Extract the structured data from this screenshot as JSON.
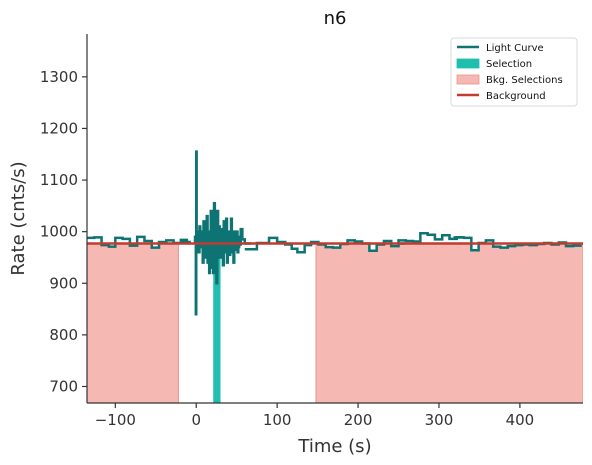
{
  "chart_data": {
    "type": "line",
    "title": "n6",
    "xlabel": "Time (s)",
    "ylabel": "Rate (cnts/s)",
    "xlim": [
      -135,
      478
    ],
    "ylim": [
      668,
      1383
    ],
    "xticks": [
      -100,
      0,
      100,
      200,
      300,
      400
    ],
    "xtick_labels": [
      "−100",
      "0",
      "100",
      "200",
      "300",
      "400"
    ],
    "yticks": [
      700,
      800,
      900,
      1000,
      1100,
      1200,
      1300
    ],
    "ytick_labels": [
      "700",
      "800",
      "900",
      "1000",
      "1100",
      "1200",
      "1300"
    ],
    "grid": false,
    "legend_position": "top-right",
    "colors": {
      "light_curve": "#0d7373",
      "selection": "#1fbfb0",
      "bkg_fill": "#f5b8b3",
      "bkg_edge": "#e8948c",
      "background": "#c23b2e"
    },
    "legend": [
      {
        "label": "Light Curve",
        "kind": "line",
        "color": "#0d7373"
      },
      {
        "label": "Selection",
        "kind": "patch",
        "color": "#1fbfb0"
      },
      {
        "label": "Bkg. Selections",
        "kind": "patch",
        "color": "#f5b8b3"
      },
      {
        "label": "Background",
        "kind": "line",
        "color": "#c23b2e"
      }
    ],
    "background_level": 977,
    "selection": {
      "x0": 21,
      "x1": 30
    },
    "bkg_selections": [
      {
        "x0": -135,
        "x1": -22
      },
      {
        "x0": 148,
        "x1": 478
      }
    ],
    "series": [
      {
        "name": "Light Curve",
        "segments": [
          {
            "x": [
              -135,
              -126,
              -117,
              -108,
              -100,
              -91,
              -82,
              -73,
              -64,
              -55,
              -46,
              -37,
              -28,
              -19
            ],
            "y": [
              988,
              989,
              974,
              971,
              988,
              986,
              973,
              990,
              982,
              969,
              980,
              983,
              978,
              984
            ]
          },
          {
            "x": [
              -3,
              -1.5,
              -0.5,
              0,
              0.5,
              1.5,
              2.5,
              4,
              5,
              6,
              7,
              8,
              9,
              10,
              11,
              12,
              13,
              14,
              15,
              16,
              17,
              18,
              19,
              20,
              21,
              22,
              23,
              24,
              25,
              26,
              27,
              28,
              29,
              30,
              31,
              32,
              33,
              34,
              35,
              36,
              37,
              38,
              39,
              40,
              41,
              42,
              43,
              44,
              45,
              46,
              47,
              48,
              49,
              50,
              51,
              52,
              53,
              54,
              55,
              57,
              60
            ],
            "y": [
              980,
              990,
              840,
              1155,
              1000,
              975,
              960,
              1010,
              985,
              970,
              1000,
              940,
              1020,
              960,
              990,
              950,
              1030,
              940,
              1000,
              920,
              985,
              1040,
              930,
              1010,
              920,
              1055,
              960,
              1010,
              900,
              1040,
              965,
              1010,
              950,
              1000,
              975,
              1005,
              935,
              1020,
              960,
              990,
              1025,
              940,
              980,
              1000,
              955,
              985,
              1025,
              960,
              990,
              940,
              1000,
              965,
              975,
              1000,
              960,
              970,
              990,
              975,
              1005,
              985,
              978
            ]
          },
          {
            "x": [
              60,
              75,
              90,
              100,
              110,
              118,
              125,
              134,
              142,
              151,
              160,
              169,
              178,
              187,
              196,
              205,
              214,
              223,
              232,
              241,
              250,
              259,
              268,
              277,
              286,
              295,
              304,
              313,
              322,
              331,
              340,
              349,
              358,
              367,
              376,
              385,
              394,
              403,
              412,
              421,
              430,
              439,
              448,
              457,
              466,
              475
            ],
            "y": [
              966,
              978,
              988,
              980,
              975,
              967,
              960,
              974,
              980,
              975,
              970,
              969,
              976,
              983,
              981,
              977,
              963,
              975,
              982,
              972,
              983,
              982,
              981,
              997,
              994,
              985,
              993,
              986,
              989,
              988,
              964,
              978,
              983,
              971,
              969,
              972,
              974,
              975,
              974,
              976,
              978,
              975,
              979,
              972,
              973,
              974
            ]
          }
        ]
      }
    ]
  }
}
